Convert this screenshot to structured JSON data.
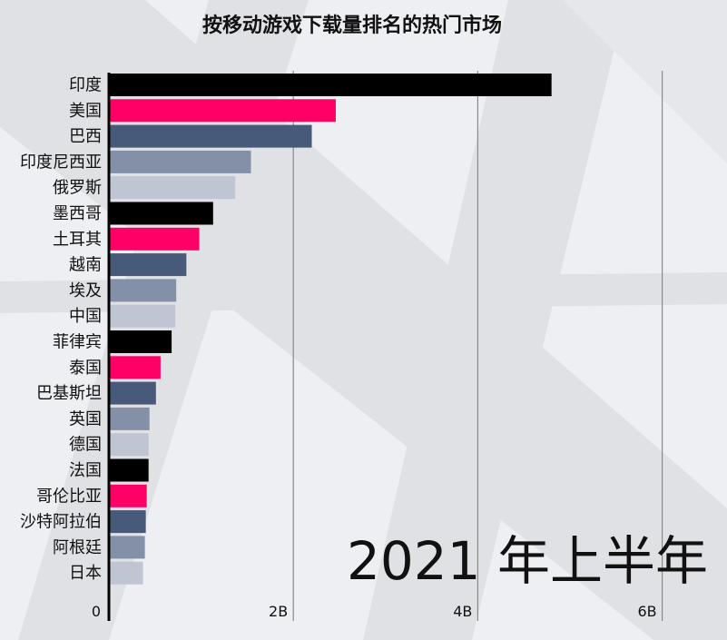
{
  "title": "按移动游戏下载量排名的热门市场",
  "period_label": "2021 年上半年",
  "colors": {
    "background": "#eeeff2",
    "background_shape": "#e0e1e5",
    "grid": "#8a8a8a",
    "axis": "#000000",
    "palette": [
      "#000000",
      "#ff0066",
      "#475a7a",
      "#8490a8",
      "#c0c5d4"
    ]
  },
  "chart_data": {
    "type": "bar",
    "orientation": "horizontal",
    "title": "按移动游戏下载量排名的热门市场",
    "categories": [
      "印度",
      "美国",
      "巴西",
      "印度尼西亚",
      "俄罗斯",
      "墨西哥",
      "土耳其",
      "越南",
      "埃及",
      "中国",
      "菲律宾",
      "泰国",
      "巴基斯坦",
      "英国",
      "德国",
      "法国",
      "哥伦比亚",
      "沙特阿拉伯",
      "阿根廷",
      "日本"
    ],
    "values": [
      4.8,
      2.46,
      2.2,
      1.54,
      1.37,
      1.13,
      0.98,
      0.84,
      0.73,
      0.72,
      0.68,
      0.56,
      0.51,
      0.44,
      0.43,
      0.43,
      0.41,
      0.4,
      0.39,
      0.37
    ],
    "xlim": [
      0,
      6.8
    ],
    "ticks": [
      0,
      2,
      4,
      6
    ],
    "tick_labels": [
      "0",
      "2B",
      "4B",
      "6B"
    ],
    "grid": true
  }
}
